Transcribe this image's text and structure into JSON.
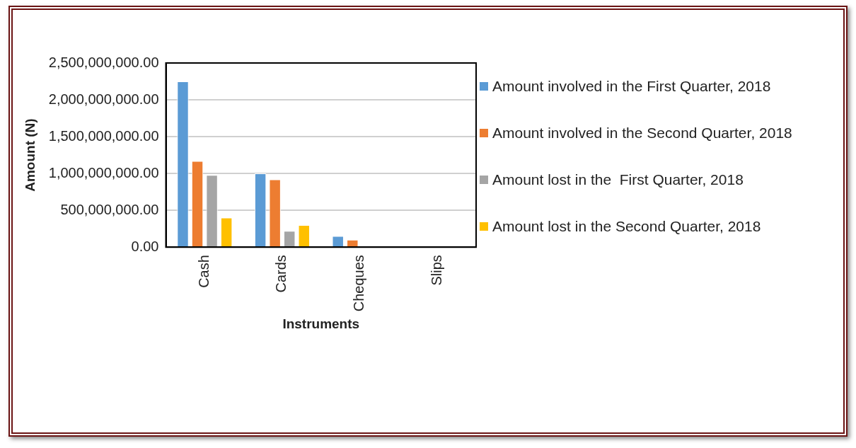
{
  "chart_data": {
    "type": "bar",
    "xlabel": "Instruments",
    "ylabel": "Amount (N)",
    "categories": [
      "Cash",
      "Cards",
      "Cheques",
      "Slips"
    ],
    "series": [
      {
        "name": "Amount involved in the First Quarter, 2018",
        "color": "#5b9bd5",
        "values": [
          2250000000,
          1000000000,
          150000000,
          0
        ]
      },
      {
        "name": "Amount involved in the Second Quarter, 2018",
        "color": "#ed7d31",
        "values": [
          1170000000,
          920000000,
          100000000,
          0
        ]
      },
      {
        "name": "Amount lost in the  First Quarter, 2018",
        "color": "#a5a5a5",
        "values": [
          980000000,
          220000000,
          0,
          0
        ]
      },
      {
        "name": "Amount lost in the Second Quarter, 2018",
        "color": "#ffc000",
        "values": [
          400000000,
          300000000,
          0,
          0
        ]
      }
    ],
    "ylim": [
      0,
      2500000000
    ],
    "yticks": [
      {
        "value": 0,
        "label": "0.00"
      },
      {
        "value": 500000000,
        "label": "500,000,000.00"
      },
      {
        "value": 1000000000,
        "label": "1,000,000,000.00"
      },
      {
        "value": 1500000000,
        "label": "1,500,000,000.00"
      },
      {
        "value": 2000000000,
        "label": "2,000,000,000.00"
      },
      {
        "value": 2500000000,
        "label": "2,500,000,000.00"
      }
    ],
    "grid": "y",
    "legend": "right"
  }
}
